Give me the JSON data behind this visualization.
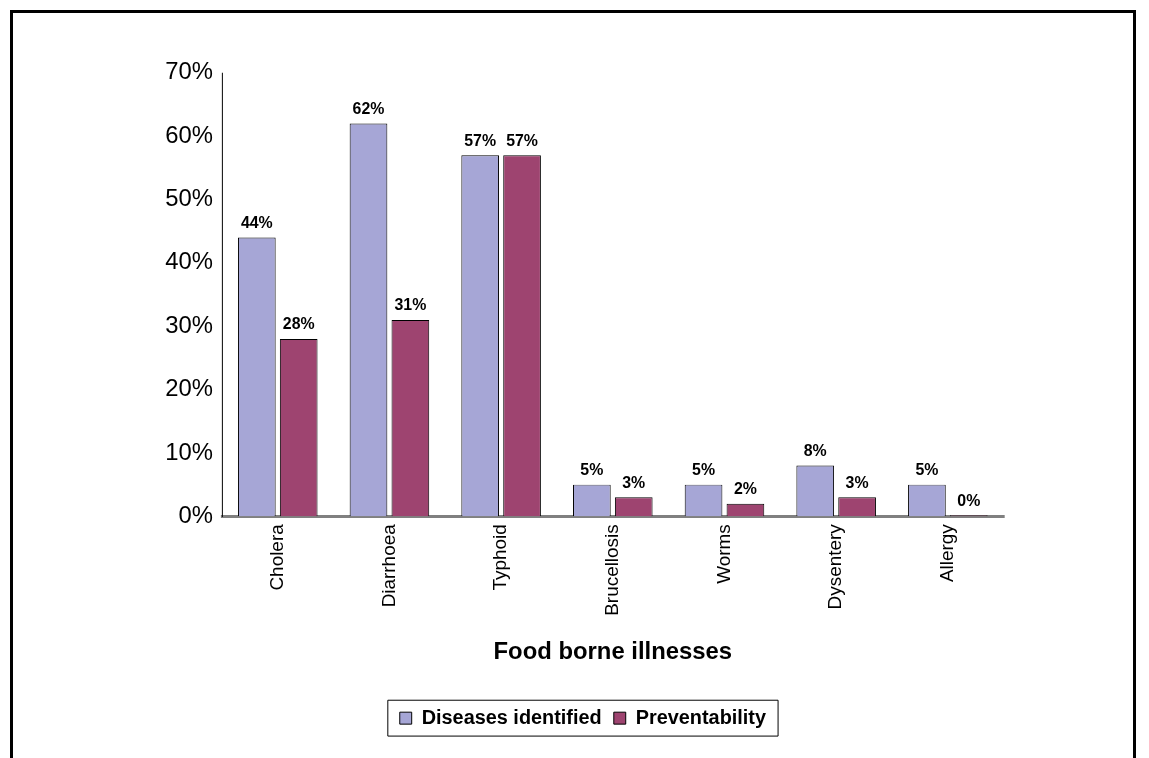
{
  "chart_data": {
    "type": "bar",
    "xlabel": "Food borne illnesses",
    "categories": [
      "Cholera",
      "Diarrhoea",
      "Typhoid",
      "Brucellosis",
      "Worms",
      "Dysentery",
      "Allergy"
    ],
    "series": [
      {
        "name": "Diseases identified",
        "color": "#a6a6d6",
        "values": [
          44,
          62,
          57,
          5,
          5,
          8,
          5
        ],
        "value_labels": [
          "44%",
          "62%",
          "57%",
          "5%",
          "5%",
          "8%",
          "5%"
        ]
      },
      {
        "name": "Preventability",
        "color": "#9e4470",
        "values": [
          28,
          31,
          57,
          3,
          2,
          3,
          0
        ],
        "value_labels": [
          "28%",
          "31%",
          "57%",
          "3%",
          "2%",
          "3%",
          "0%"
        ]
      }
    ],
    "ylim": [
      0,
      70
    ],
    "yticks": [
      {
        "value": 0,
        "label": "0%"
      },
      {
        "value": 10,
        "label": "10%"
      },
      {
        "value": 20,
        "label": "20%"
      },
      {
        "value": 30,
        "label": "30%"
      },
      {
        "value": 40,
        "label": "40%"
      },
      {
        "value": 50,
        "label": "50%"
      },
      {
        "value": 60,
        "label": "60%"
      },
      {
        "value": 70,
        "label": "70%"
      }
    ],
    "grid": false,
    "legend": "bottom"
  }
}
